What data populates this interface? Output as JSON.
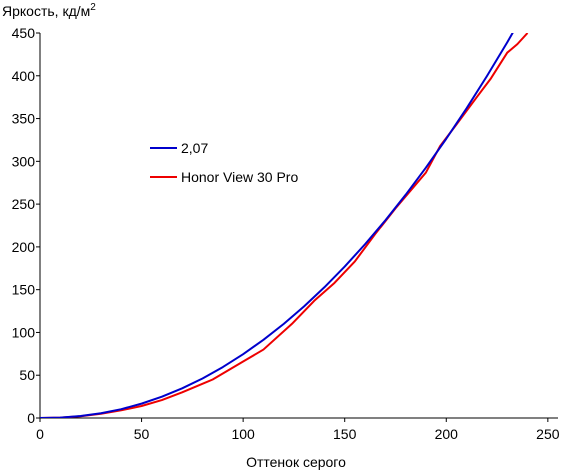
{
  "chart_data": {
    "type": "line",
    "title": "",
    "ylabel": "Яркость, кд/м",
    "ylabel_superscript": "2",
    "xlabel": "Оттенок серого",
    "xlim": [
      0,
      255
    ],
    "ylim": [
      0,
      450
    ],
    "xticks": [
      0,
      50,
      100,
      150,
      200,
      250
    ],
    "yticks": [
      0,
      50,
      100,
      150,
      200,
      250,
      300,
      350,
      400,
      450
    ],
    "grid": false,
    "legend_position": "center-left",
    "series": [
      {
        "name": "2,07",
        "color": "#0000cc",
        "x": [
          0,
          10,
          20,
          30,
          40,
          50,
          60,
          70,
          80,
          90,
          100,
          110,
          120,
          130,
          140,
          150,
          160,
          170,
          180,
          190,
          200,
          210,
          220,
          230,
          236,
          238
        ],
        "y": [
          0,
          0.5,
          2.3,
          5.6,
          10.3,
          16.8,
          24.9,
          34.7,
          46.2,
          59.5,
          74.6,
          91.4,
          110,
          130.5,
          152.8,
          177,
          203.1,
          231,
          260.9,
          292.7,
          326.4,
          362,
          399.6,
          439.1,
          463.8,
          472.3
        ]
      },
      {
        "name": "Honor View 30 Pro",
        "color": "#ee0000",
        "x": [
          0,
          10,
          20,
          30,
          40,
          50,
          60,
          70,
          85,
          100,
          110,
          124,
          135,
          145,
          155,
          165,
          175,
          185,
          190,
          197,
          205,
          215,
          222,
          230,
          235,
          240
        ],
        "y": [
          0,
          0.5,
          2,
          5,
          9,
          14,
          21,
          30,
          45,
          66,
          80,
          110,
          137,
          158,
          183,
          215,
          245,
          273,
          287,
          318,
          343,
          375,
          397,
          427,
          437,
          450
        ]
      }
    ]
  }
}
